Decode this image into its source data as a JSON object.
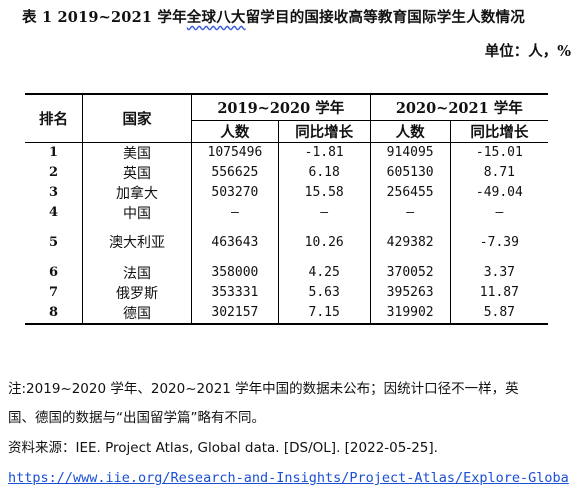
{
  "title": {
    "prefix": "表 1  2019~2021 学年",
    "underlined": "全球八大",
    "suffix": "留学目的国接收高等教育国际学生人数情况"
  },
  "unit": "单位：人，%",
  "table": {
    "header_rank": "排名",
    "header_country": "国家",
    "period1": "2019~2020 学年",
    "period2": "2020~2021 学年",
    "sub_people": "人数",
    "sub_yoy": "同比增长",
    "rows": [
      {
        "rank": "1",
        "country": "美国",
        "p1": "1075496",
        "g1": "-1.81",
        "p2": "914095",
        "g2": "-15.01"
      },
      {
        "rank": "2",
        "country": "英国",
        "p1": "556625",
        "g1": "6.18",
        "p2": "605130",
        "g2": "8.71"
      },
      {
        "rank": "3",
        "country": "加拿大",
        "p1": "503270",
        "g1": "15.58",
        "p2": "256455",
        "g2": "-49.04"
      },
      {
        "rank": "4",
        "country": "中国",
        "p1": "–",
        "g1": "–",
        "p2": "–",
        "g2": "–"
      },
      {
        "rank": "5",
        "country": "澳大利亚",
        "p1": "463643",
        "g1": "10.26",
        "p2": "429382",
        "g2": "-7.39"
      },
      {
        "rank": "6",
        "country": "法国",
        "p1": "358000",
        "g1": "4.25",
        "p2": "370052",
        "g2": "3.37"
      },
      {
        "rank": "7",
        "country": "俄罗斯",
        "p1": "353331",
        "g1": "5.63",
        "p2": "395263",
        "g2": "11.87"
      },
      {
        "rank": "8",
        "country": "德国",
        "p1": "302157",
        "g1": "7.15",
        "p2": "319902",
        "g2": "5.87"
      }
    ]
  },
  "note_line1": "注:2019~2020 学年、2020~2021 学年中国的数据未公布；因统计口径不一样，英",
  "note_line2": "国、德国的数据与“出国留学篇”略有不同。",
  "source": "资料来源：IEE. Project Atlas, Global data. [DS/OL]. [2022-05-25].",
  "link": "https://www.iie.org/Research-and-Insights/Project-Atlas/Explore-Globa"
}
